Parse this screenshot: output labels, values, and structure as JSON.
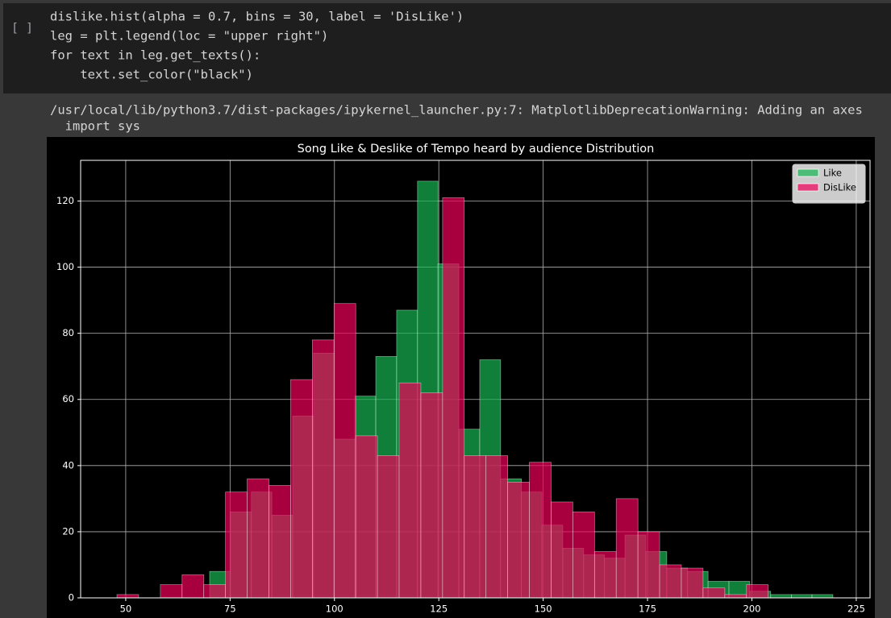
{
  "cell": {
    "prompt": "[ ]",
    "code": [
      "dislike.hist(alpha = 0.7, bins = 30, label = 'DisLike')",
      "leg = plt.legend(loc = \"upper right\")",
      "for text in leg.get_texts():",
      "    text.set_color(\"black\")"
    ],
    "output": [
      "/usr/local/lib/python3.7/dist-packages/ipykernel_launcher.py:7: MatplotlibDeprecationWarning: Adding an axes",
      "  import sys"
    ]
  },
  "chart_data": {
    "type": "histogram",
    "title": "Song Like & Deslike of Tempo heard by audience Distribution",
    "alpha": 0.7,
    "grid": true,
    "legend": "upper right",
    "xlim": [
      39.2,
      228.3
    ],
    "ylim": [
      0,
      132.3
    ],
    "xticks": [
      50,
      75,
      100,
      125,
      150,
      175,
      200,
      225
    ],
    "yticks": [
      0,
      20,
      40,
      60,
      80,
      100,
      120
    ],
    "series": [
      {
        "name": "Like",
        "color": "#17b553",
        "bins": [
          70.1,
          75.1,
          80.1,
          85.0,
          90.0,
          95.0,
          100.0,
          104.9,
          109.9,
          114.9,
          119.9,
          124.8,
          129.8,
          134.8,
          139.8,
          144.8,
          149.7,
          154.7,
          159.7,
          164.7,
          169.6,
          174.6,
          179.6,
          184.6,
          189.5,
          194.5,
          199.5,
          204.5,
          209.5,
          214.4,
          219.4
        ],
        "values": [
          8,
          26,
          32,
          25,
          55,
          74,
          48,
          61,
          73,
          87,
          126,
          101,
          51,
          72,
          36,
          32,
          22,
          15,
          13,
          12,
          19,
          14,
          9,
          8,
          5,
          5,
          2,
          1,
          1,
          1
        ]
      },
      {
        "name": "DisLike",
        "color": "#f0005a",
        "bins": [
          47.9,
          53.1,
          58.3,
          63.5,
          68.7,
          73.9,
          79.1,
          84.3,
          89.5,
          94.7,
          99.9,
          105.1,
          110.3,
          115.5,
          120.7,
          125.9,
          131.1,
          136.3,
          141.5,
          146.7,
          151.9,
          157.1,
          162.3,
          167.5,
          172.7,
          177.9,
          183.1,
          188.3,
          193.5,
          198.7,
          203.9
        ],
        "values": [
          1,
          0,
          4,
          7,
          4,
          32,
          36,
          34,
          66,
          78,
          89,
          49,
          43,
          65,
          62,
          121,
          43,
          43,
          35,
          41,
          29,
          26,
          14,
          30,
          20,
          10,
          9,
          3,
          1,
          4
        ]
      }
    ]
  }
}
